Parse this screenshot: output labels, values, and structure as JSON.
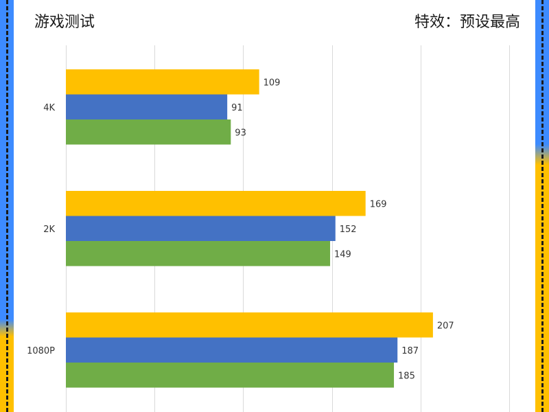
{
  "header": {
    "title": "游戏测试",
    "subtitle": "特效：预设最高"
  },
  "colors": {
    "background": "#ffffff",
    "edge_blue": "#3d8bff",
    "edge_yellow": "#ffc000",
    "grid": "#d9d9d9"
  },
  "chart_data": {
    "type": "bar",
    "orientation": "horizontal",
    "title": "",
    "xlabel": "",
    "ylabel": "",
    "categories": [
      "4K",
      "2K",
      "1080P"
    ],
    "series": [
      {
        "color": "#ffc000",
        "values": [
          109,
          169,
          207
        ]
      },
      {
        "color": "#4472c4",
        "values": [
          91,
          152,
          187
        ]
      },
      {
        "color": "#70ad47",
        "values": [
          93,
          149,
          185
        ]
      }
    ],
    "xlim": [
      0,
      250
    ],
    "grid": true,
    "legend": "none",
    "data_labels": true
  }
}
